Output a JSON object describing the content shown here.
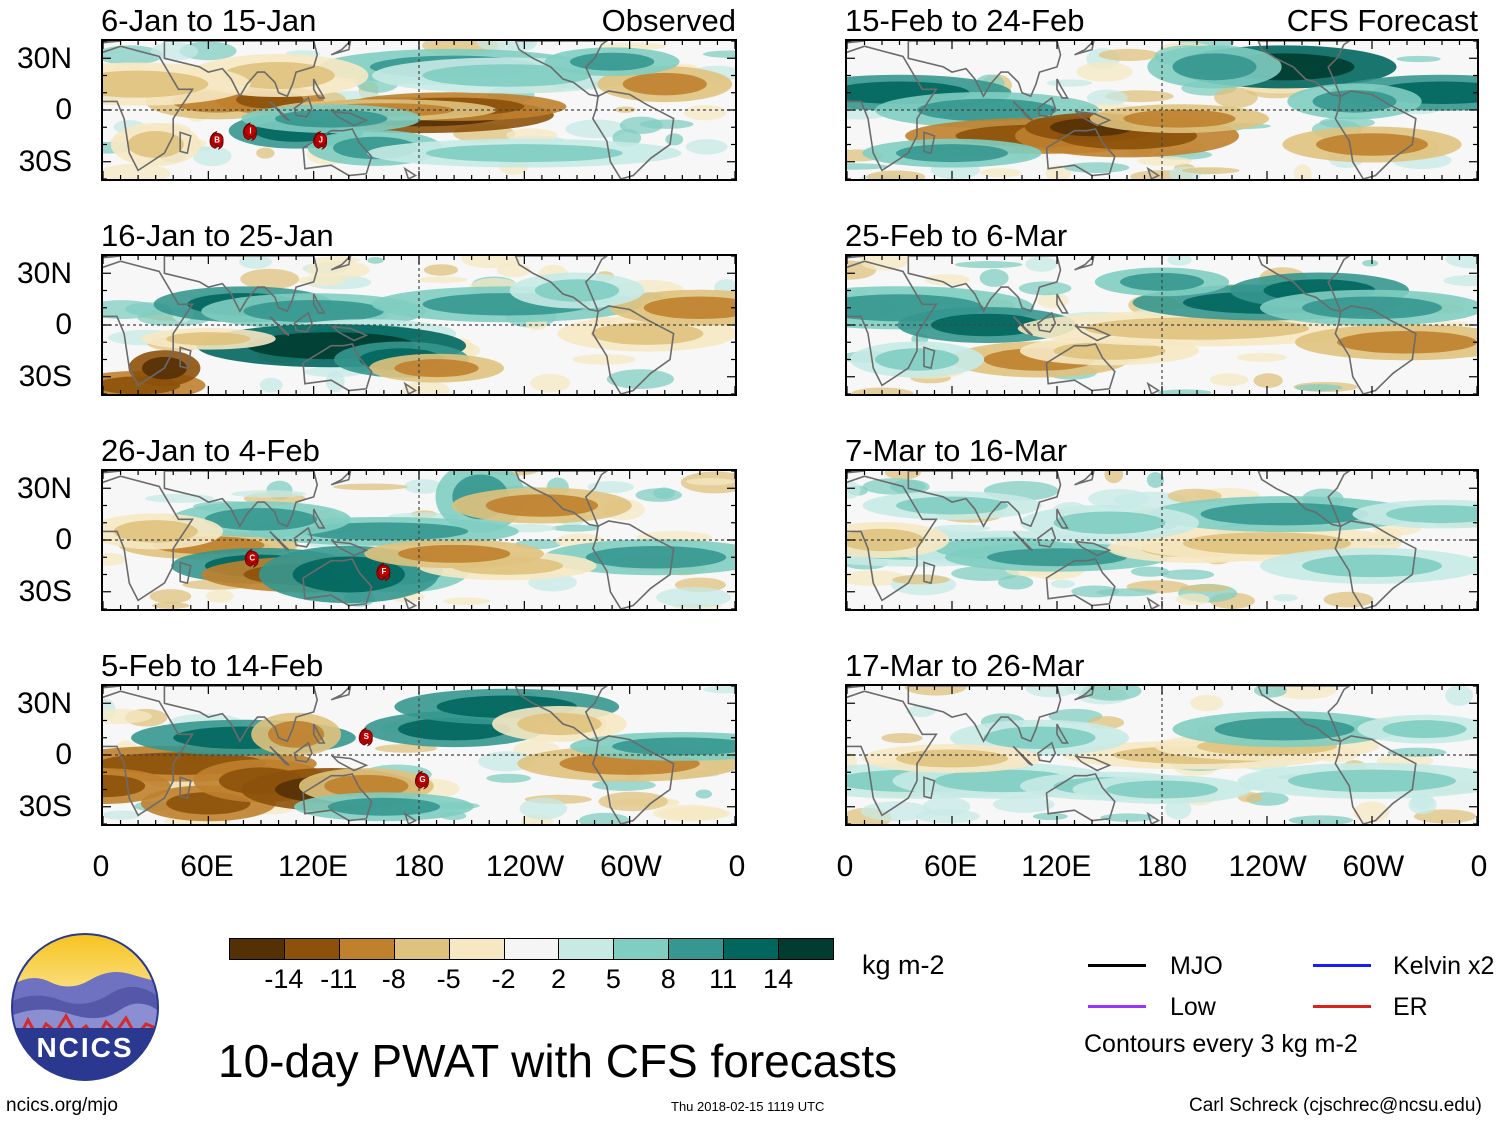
{
  "title": "10-day PWAT with CFS forecasts",
  "observed_label": "Observed",
  "forecast_label": "CFS Forecast",
  "panels_left": [
    {
      "period": "6-Jan to 15-Jan",
      "storms": [
        "B",
        "I",
        "J"
      ]
    },
    {
      "period": "16-Jan to 25-Jan",
      "storms": []
    },
    {
      "period": "26-Jan to 4-Feb",
      "storms": [
        "C",
        "F"
      ]
    },
    {
      "period": "5-Feb to 14-Feb",
      "storms": [
        "S",
        "G"
      ]
    }
  ],
  "panels_right": [
    {
      "period": "15-Feb to 24-Feb"
    },
    {
      "period": "25-Feb to 6-Mar"
    },
    {
      "period": "7-Mar to 16-Mar"
    },
    {
      "period": "17-Mar to 26-Mar"
    }
  ],
  "lat_labels": [
    "30N",
    "0",
    "30S"
  ],
  "lon_labels": [
    "0",
    "60E",
    "120E",
    "180",
    "120W",
    "60W",
    "0"
  ],
  "colorbar": {
    "unit": "kg m-2",
    "ticks": [
      "-14",
      "-11",
      "-8",
      "-5",
      "-2",
      "2",
      "5",
      "8",
      "11",
      "14"
    ],
    "colors": [
      "#543005",
      "#8c510a",
      "#bf812d",
      "#dfc27d",
      "#f6e8c3",
      "#f5f5f5",
      "#c7eae5",
      "#80cdc1",
      "#35978f",
      "#01665e",
      "#003c30"
    ]
  },
  "legend": {
    "items": [
      {
        "label": "MJO",
        "color": "#000000"
      },
      {
        "label": "Kelvin x2",
        "color": "#1a1aff"
      },
      {
        "label": "Low",
        "color": "#9933ff"
      },
      {
        "label": "ER",
        "color": "#e0201b"
      }
    ],
    "note": "Contours every 3 kg m-2"
  },
  "logo_text": "NCICS",
  "footer": {
    "url": "ncics.org/mjo",
    "timestamp": "Thu 2018-02-15 1119 UTC",
    "credit": "Carl Schreck (cjschrec@ncsu.edu)"
  }
}
